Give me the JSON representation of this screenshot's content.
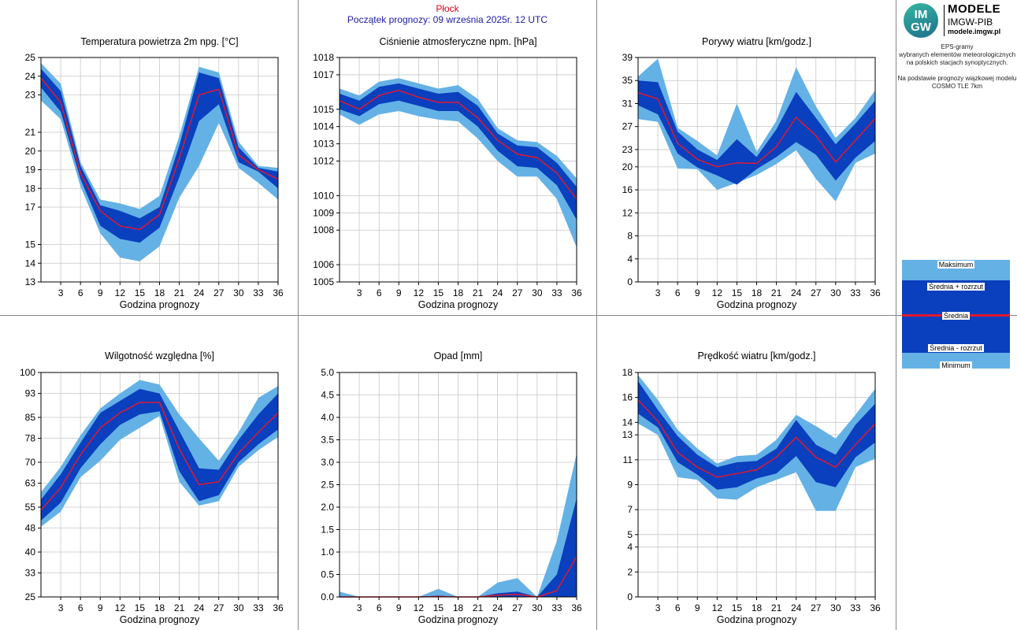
{
  "header": {
    "station": "Płock",
    "forecast_start": "Początek prognozy: 09 września 2025r. 12 UTC"
  },
  "logo": {
    "circle_line1": "IM",
    "circle_line2": "GW",
    "title": "MODELE",
    "subtitle": "IMGW-PIB",
    "url": "modele.imgw.pl"
  },
  "description": {
    "line1": "EPS-gramy",
    "line2": "wybranych elementów meteorologicznych",
    "line3": "na polskich stacjach  synoptycznych.",
    "line4": "Na podstawie prognozy wiązkowej modelu",
    "line5": "COSMO TLE 7km"
  },
  "legend": {
    "max": "Maksimum",
    "mean_plus": "Średnia + rozrzut",
    "mean": "Średnia",
    "mean_minus": "Średnia - rozrzut",
    "min": "Minimum"
  },
  "colors": {
    "outer_band": "#64b1e6",
    "inner_band": "#0a3fbe",
    "mean_line": "#e0192f",
    "grid": "#c8c8c8",
    "frame": "#000000",
    "panel_border": "#888888"
  },
  "chart_data": [
    {
      "type": "area",
      "title": "Temperatura powietrza 2m npg. [°C]",
      "xlabel": "Godzina prognozy",
      "x": [
        0,
        3,
        6,
        9,
        12,
        15,
        18,
        21,
        24,
        27,
        30,
        33,
        36
      ],
      "x_ticks": [
        3,
        6,
        9,
        12,
        15,
        18,
        21,
        24,
        27,
        30,
        33,
        36
      ],
      "xlim": [
        0,
        36
      ],
      "ylim": [
        13,
        25
      ],
      "y_ticks": [
        13,
        14,
        15,
        17,
        18,
        19,
        20,
        21,
        23,
        24,
        25
      ],
      "series": [
        {
          "name": "Maksimum",
          "values": [
            24.7,
            23.6,
            19.4,
            17.4,
            17.2,
            16.9,
            17.6,
            20.8,
            24.5,
            24.2,
            20.5,
            19.2,
            19.1
          ]
        },
        {
          "name": "Średnia + rozrzut",
          "values": [
            24.4,
            23.2,
            19.2,
            17.1,
            16.8,
            16.4,
            17.0,
            20.3,
            24.2,
            23.9,
            20.2,
            19.1,
            18.9
          ]
        },
        {
          "name": "Średnia",
          "values": [
            23.9,
            22.6,
            18.8,
            16.8,
            16.0,
            15.8,
            16.6,
            19.6,
            23.0,
            23.3,
            19.8,
            19.0,
            18.5
          ]
        },
        {
          "name": "Średnia - rozrzut",
          "values": [
            23.4,
            22.1,
            18.5,
            16.0,
            15.3,
            15.1,
            15.9,
            18.6,
            21.6,
            22.5,
            19.4,
            18.9,
            18.0
          ]
        },
        {
          "name": "Minimum",
          "values": [
            22.7,
            21.7,
            18.1,
            15.6,
            14.3,
            14.1,
            14.9,
            17.5,
            19.2,
            21.5,
            19.1,
            18.3,
            17.4
          ]
        }
      ]
    },
    {
      "type": "area",
      "title": "Ciśnienie atmosferyczne npm. [hPa]",
      "xlabel": "Godzina prognozy",
      "x": [
        0,
        3,
        6,
        9,
        12,
        15,
        18,
        21,
        24,
        27,
        30,
        33,
        36
      ],
      "x_ticks": [
        3,
        6,
        9,
        12,
        15,
        18,
        21,
        24,
        27,
        30,
        33,
        36
      ],
      "xlim": [
        0,
        36
      ],
      "ylim": [
        1005,
        1018
      ],
      "y_ticks": [
        1005,
        1006,
        1008,
        1009,
        1010,
        1012,
        1013,
        1014,
        1015,
        1017,
        1018
      ],
      "series": [
        {
          "name": "Maksimum",
          "values": [
            1016.2,
            1015.8,
            1016.6,
            1016.8,
            1016.5,
            1016.2,
            1016.4,
            1015.6,
            1013.9,
            1013.2,
            1013.1,
            1012.3,
            1011.0
          ]
        },
        {
          "name": "Średnia + rozrzut",
          "values": [
            1015.9,
            1015.5,
            1016.3,
            1016.5,
            1016.2,
            1015.9,
            1016.0,
            1015.2,
            1013.6,
            1012.9,
            1012.8,
            1011.9,
            1010.5
          ]
        },
        {
          "name": "Średnia",
          "values": [
            1015.5,
            1015.0,
            1015.8,
            1016.1,
            1015.7,
            1015.4,
            1015.4,
            1014.5,
            1013.2,
            1012.4,
            1012.2,
            1011.3,
            1009.8
          ]
        },
        {
          "name": "Średnia - rozrzut",
          "values": [
            1015.0,
            1014.6,
            1015.3,
            1015.5,
            1015.2,
            1014.9,
            1014.9,
            1014.0,
            1012.6,
            1011.7,
            1011.6,
            1010.6,
            1008.6
          ]
        },
        {
          "name": "Minimum",
          "values": [
            1014.7,
            1014.1,
            1014.7,
            1014.9,
            1014.6,
            1014.4,
            1014.3,
            1013.3,
            1012.0,
            1011.1,
            1011.1,
            1009.8,
            1007.0
          ]
        }
      ]
    },
    {
      "type": "area",
      "title": "Porywy wiatru [km/godz.]",
      "xlabel": "Godzina prognozy",
      "x": [
        0,
        3,
        6,
        9,
        12,
        15,
        18,
        21,
        24,
        27,
        30,
        33,
        36
      ],
      "x_ticks": [
        3,
        6,
        9,
        12,
        15,
        18,
        21,
        24,
        27,
        30,
        33,
        36
      ],
      "xlim": [
        0,
        36
      ],
      "ylim": [
        0,
        39
      ],
      "y_ticks": [
        0,
        4,
        8,
        12,
        16,
        20,
        23,
        27,
        31,
        35,
        39
      ],
      "series": [
        {
          "name": "Maksimum",
          "values": [
            35.7,
            38.8,
            26.8,
            24.5,
            22.0,
            31.0,
            22.6,
            28.0,
            37.3,
            30.5,
            25.0,
            28.5,
            33.3
          ]
        },
        {
          "name": "Średnia + rozrzut",
          "values": [
            35.0,
            34.7,
            26.1,
            23.0,
            21.2,
            24.8,
            21.7,
            26.5,
            33.0,
            28.5,
            23.9,
            27.5,
            31.5
          ]
        },
        {
          "name": "Średnia",
          "values": [
            32.9,
            31.8,
            24.1,
            21.3,
            20.0,
            20.7,
            20.6,
            23.5,
            28.6,
            25.4,
            20.8,
            24.6,
            28.4
          ]
        },
        {
          "name": "Średnia - rozrzut",
          "values": [
            30.7,
            29.1,
            22.3,
            19.9,
            18.5,
            16.9,
            19.6,
            21.7,
            24.3,
            22.1,
            17.6,
            21.6,
            24.5
          ]
        },
        {
          "name": "Minimum",
          "values": [
            28.3,
            27.8,
            19.7,
            19.6,
            16.0,
            17.2,
            18.6,
            20.5,
            22.9,
            17.9,
            14.0,
            20.7,
            22.3
          ]
        }
      ]
    },
    {
      "type": "area",
      "title": "Wilgotność względna [%]",
      "xlabel": "Godzina prognozy",
      "x": [
        0,
        3,
        6,
        9,
        12,
        15,
        18,
        21,
        24,
        27,
        30,
        33,
        36
      ],
      "x_ticks": [
        3,
        6,
        9,
        12,
        15,
        18,
        21,
        24,
        27,
        30,
        33,
        36
      ],
      "xlim": [
        0,
        36
      ],
      "ylim": [
        25,
        100
      ],
      "y_ticks": [
        25,
        33,
        40,
        48,
        55,
        63,
        70,
        78,
        85,
        93,
        100
      ],
      "series": [
        {
          "name": "Maksimum",
          "values": [
            60.0,
            68.5,
            79.0,
            88.0,
            93.0,
            97.5,
            96.0,
            86.0,
            78.0,
            70.5,
            80.0,
            91.5,
            95.5
          ]
        },
        {
          "name": "Średnia + rozrzut",
          "values": [
            57.5,
            66.0,
            76.5,
            86.5,
            90.5,
            94.5,
            93.0,
            80.5,
            68.0,
            67.5,
            77.5,
            86.0,
            93.0
          ]
        },
        {
          "name": "Średnia",
          "values": [
            54.0,
            61.5,
            72.5,
            81.5,
            86.5,
            90.0,
            90.0,
            74.5,
            62.5,
            63.5,
            73.0,
            80.0,
            86.5
          ]
        },
        {
          "name": "Średnia - rozrzut",
          "values": [
            50.5,
            56.5,
            68.0,
            76.0,
            82.5,
            86.0,
            87.0,
            67.0,
            57.0,
            59.0,
            70.0,
            76.0,
            81.0
          ]
        },
        {
          "name": "Minimum",
          "values": [
            48.5,
            53.5,
            65.0,
            70.5,
            77.5,
            81.5,
            85.5,
            63.5,
            55.5,
            57.0,
            68.5,
            74.0,
            78.5
          ]
        }
      ]
    },
    {
      "type": "area",
      "title": "Opad [mm]",
      "xlabel": "Godzina prognozy",
      "x": [
        0,
        3,
        6,
        9,
        12,
        15,
        18,
        21,
        24,
        27,
        30,
        33,
        36
      ],
      "x_ticks": [
        3,
        6,
        9,
        12,
        15,
        18,
        21,
        24,
        27,
        30,
        33,
        36
      ],
      "xlim": [
        0,
        36
      ],
      "ylim": [
        0,
        5
      ],
      "y_ticks": [
        "0.0",
        "0.5",
        "1.0",
        "1.5",
        "2.0",
        "2.5",
        "3.0",
        "3.5",
        "4.0",
        "4.5",
        "5.0"
      ],
      "series": [
        {
          "name": "Maksimum",
          "values": [
            0.12,
            0.0,
            0.0,
            0.0,
            0.0,
            0.18,
            0.0,
            0.0,
            0.32,
            0.42,
            0.0,
            1.25,
            3.2
          ]
        },
        {
          "name": "Średnia + rozrzut",
          "values": [
            0.0,
            0.0,
            0.0,
            0.0,
            0.0,
            0.03,
            0.0,
            0.0,
            0.08,
            0.12,
            0.0,
            0.5,
            2.2
          ]
        },
        {
          "name": "Średnia",
          "values": [
            0.0,
            0.0,
            0.0,
            0.0,
            0.0,
            0.01,
            0.0,
            0.0,
            0.04,
            0.06,
            0.0,
            0.14,
            0.9
          ]
        },
        {
          "name": "Średnia - rozrzut",
          "values": [
            0,
            0,
            0,
            0,
            0,
            0,
            0,
            0,
            0,
            0,
            0,
            0,
            0
          ]
        },
        {
          "name": "Minimum",
          "values": [
            0,
            0,
            0,
            0,
            0,
            0,
            0,
            0,
            0,
            0,
            0,
            0,
            0
          ]
        }
      ]
    },
    {
      "type": "area",
      "title": "Prędkość wiatru [km/godz.]",
      "xlabel": "Godzina prognozy",
      "x": [
        0,
        3,
        6,
        9,
        12,
        15,
        18,
        21,
        24,
        27,
        30,
        33,
        36
      ],
      "x_ticks": [
        3,
        6,
        9,
        12,
        15,
        18,
        21,
        24,
        27,
        30,
        33,
        36
      ],
      "xlim": [
        0,
        36
      ],
      "ylim": [
        0,
        18
      ],
      "y_ticks": [
        0,
        2,
        4,
        5,
        7,
        9,
        11,
        13,
        14,
        16,
        18
      ],
      "series": [
        {
          "name": "Maksimum",
          "values": [
            17.8,
            15.8,
            13.4,
            11.9,
            10.7,
            11.3,
            11.4,
            12.6,
            14.6,
            13.7,
            12.7,
            14.6,
            16.7
          ]
        },
        {
          "name": "Średnia + rozrzut",
          "values": [
            17.3,
            15.0,
            12.9,
            11.4,
            10.4,
            10.8,
            10.9,
            11.9,
            14.2,
            12.2,
            11.4,
            13.8,
            15.5
          ]
        },
        {
          "name": "Średnia",
          "values": [
            15.8,
            14.1,
            11.6,
            10.4,
            9.6,
            9.9,
            10.2,
            11.2,
            12.8,
            11.2,
            10.4,
            12.2,
            13.9
          ]
        },
        {
          "name": "Średnia - rozrzut",
          "values": [
            14.7,
            13.6,
            10.8,
            9.8,
            8.6,
            8.8,
            9.5,
            9.9,
            11.3,
            9.2,
            8.8,
            11.2,
            12.4
          ]
        },
        {
          "name": "Minimum",
          "values": [
            13.9,
            13.0,
            9.6,
            9.4,
            7.9,
            7.8,
            8.8,
            9.4,
            10.0,
            6.9,
            6.9,
            10.4,
            11.1
          ]
        }
      ]
    }
  ]
}
